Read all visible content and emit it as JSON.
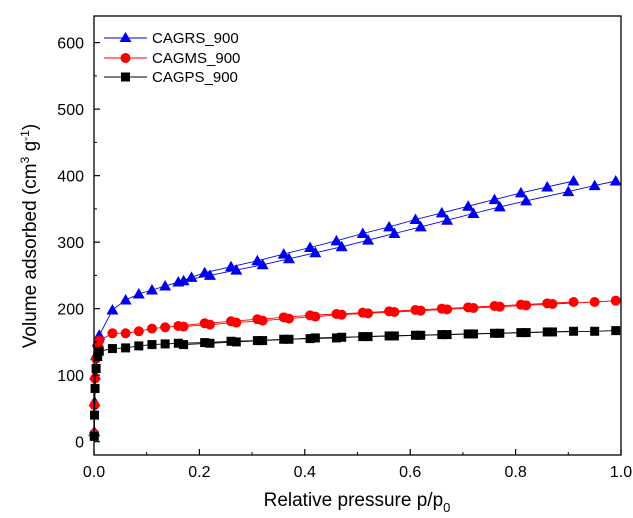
{
  "chart_data": {
    "type": "scatter",
    "xlabel": "Relative pressure p/p",
    "xlabel_sub": "0",
    "ylabel": "Volume adsorbed (cm",
    "ylabel_sup1": "3",
    "ylabel_mid": " g",
    "ylabel_sup2": "-1",
    "ylabel_end": ")",
    "xlim": [
      0,
      1.0
    ],
    "ylim": [
      -20,
      640
    ],
    "xticks": [
      0.0,
      0.2,
      0.4,
      0.6,
      0.8,
      1.0
    ],
    "xtick_labels": [
      "0.0",
      "0.2",
      "0.4",
      "0.6",
      "0.8",
      "1.0"
    ],
    "yticks": [
      0,
      100,
      200,
      300,
      400,
      500,
      600
    ],
    "ytick_labels": [
      "0",
      "100",
      "200",
      "300",
      "400",
      "500",
      "600"
    ],
    "grid": false,
    "legend_position": "top-left",
    "series": [
      {
        "name": "CAGRS_900",
        "color": "#0000ee",
        "marker": "triangle",
        "adsorption": [
          [
            0.0005,
            15
          ],
          [
            0.001,
            60
          ],
          [
            0.002,
            100
          ],
          [
            0.004,
            130
          ],
          [
            0.007,
            150
          ],
          [
            0.01,
            160
          ],
          [
            0.035,
            198
          ],
          [
            0.06,
            213
          ],
          [
            0.085,
            222
          ],
          [
            0.11,
            228
          ],
          [
            0.135,
            234
          ],
          [
            0.16,
            240
          ],
          [
            0.185,
            247
          ],
          [
            0.21,
            254
          ],
          [
            0.26,
            263
          ],
          [
            0.31,
            272
          ],
          [
            0.36,
            282
          ],
          [
            0.41,
            292
          ],
          [
            0.46,
            302
          ],
          [
            0.51,
            313
          ],
          [
            0.56,
            323
          ],
          [
            0.61,
            334
          ],
          [
            0.66,
            344
          ],
          [
            0.71,
            354
          ],
          [
            0.76,
            364
          ],
          [
            0.81,
            374
          ],
          [
            0.86,
            383
          ],
          [
            0.91,
            392
          ]
        ],
        "desorption": [
          [
            0.99,
            392
          ],
          [
            0.95,
            385
          ],
          [
            0.9,
            376
          ],
          [
            0.82,
            362
          ],
          [
            0.77,
            353
          ],
          [
            0.72,
            343
          ],
          [
            0.67,
            333
          ],
          [
            0.62,
            323
          ],
          [
            0.57,
            313
          ],
          [
            0.52,
            303
          ],
          [
            0.47,
            293
          ],
          [
            0.42,
            284
          ],
          [
            0.37,
            275
          ],
          [
            0.32,
            266
          ],
          [
            0.27,
            258
          ],
          [
            0.22,
            250
          ],
          [
            0.17,
            242
          ]
        ]
      },
      {
        "name": "CAGMS_900",
        "color": "#ff0000",
        "marker": "circle",
        "adsorption": [
          [
            0.0005,
            12
          ],
          [
            0.001,
            55
          ],
          [
            0.002,
            95
          ],
          [
            0.004,
            125
          ],
          [
            0.007,
            143
          ],
          [
            0.01,
            152
          ],
          [
            0.035,
            163
          ],
          [
            0.06,
            163
          ],
          [
            0.085,
            166
          ],
          [
            0.11,
            170
          ],
          [
            0.135,
            172
          ],
          [
            0.16,
            174
          ],
          [
            0.21,
            178
          ],
          [
            0.26,
            181
          ],
          [
            0.31,
            184
          ],
          [
            0.36,
            187
          ],
          [
            0.41,
            190
          ],
          [
            0.46,
            192
          ],
          [
            0.51,
            194
          ],
          [
            0.56,
            196
          ],
          [
            0.61,
            198
          ],
          [
            0.66,
            200
          ],
          [
            0.71,
            202
          ],
          [
            0.76,
            204
          ],
          [
            0.81,
            206
          ],
          [
            0.86,
            208
          ],
          [
            0.91,
            210
          ]
        ],
        "desorption": [
          [
            0.99,
            212
          ],
          [
            0.95,
            210
          ],
          [
            0.87,
            207
          ],
          [
            0.82,
            205
          ],
          [
            0.77,
            203
          ],
          [
            0.72,
            201
          ],
          [
            0.67,
            199
          ],
          [
            0.62,
            197
          ],
          [
            0.57,
            195
          ],
          [
            0.52,
            193
          ],
          [
            0.47,
            191
          ],
          [
            0.42,
            188
          ],
          [
            0.37,
            185
          ],
          [
            0.32,
            182
          ],
          [
            0.27,
            179
          ],
          [
            0.22,
            176
          ],
          [
            0.17,
            173
          ]
        ]
      },
      {
        "name": "CAGPS_900",
        "color": "#000000",
        "marker": "square",
        "adsorption": [
          [
            0.0005,
            8
          ],
          [
            0.001,
            40
          ],
          [
            0.002,
            80
          ],
          [
            0.004,
            110
          ],
          [
            0.007,
            128
          ],
          [
            0.01,
            136
          ],
          [
            0.035,
            140
          ],
          [
            0.06,
            141
          ],
          [
            0.085,
            144
          ],
          [
            0.11,
            146
          ],
          [
            0.135,
            147
          ],
          [
            0.16,
            148
          ],
          [
            0.21,
            149
          ],
          [
            0.26,
            151
          ],
          [
            0.31,
            152
          ],
          [
            0.36,
            154
          ],
          [
            0.41,
            155
          ],
          [
            0.46,
            156
          ],
          [
            0.51,
            158
          ],
          [
            0.56,
            159
          ],
          [
            0.61,
            160
          ],
          [
            0.66,
            161
          ],
          [
            0.71,
            162
          ],
          [
            0.76,
            163
          ],
          [
            0.81,
            164
          ],
          [
            0.86,
            165
          ],
          [
            0.91,
            166
          ]
        ],
        "desorption": [
          [
            0.99,
            167
          ],
          [
            0.95,
            166
          ],
          [
            0.87,
            165
          ],
          [
            0.82,
            164
          ],
          [
            0.77,
            163
          ],
          [
            0.72,
            162
          ],
          [
            0.67,
            161
          ],
          [
            0.62,
            160
          ],
          [
            0.57,
            159
          ],
          [
            0.52,
            158
          ],
          [
            0.47,
            157
          ],
          [
            0.42,
            156
          ],
          [
            0.37,
            154
          ],
          [
            0.32,
            152
          ],
          [
            0.27,
            150
          ],
          [
            0.22,
            148
          ],
          [
            0.17,
            146
          ]
        ]
      }
    ]
  }
}
